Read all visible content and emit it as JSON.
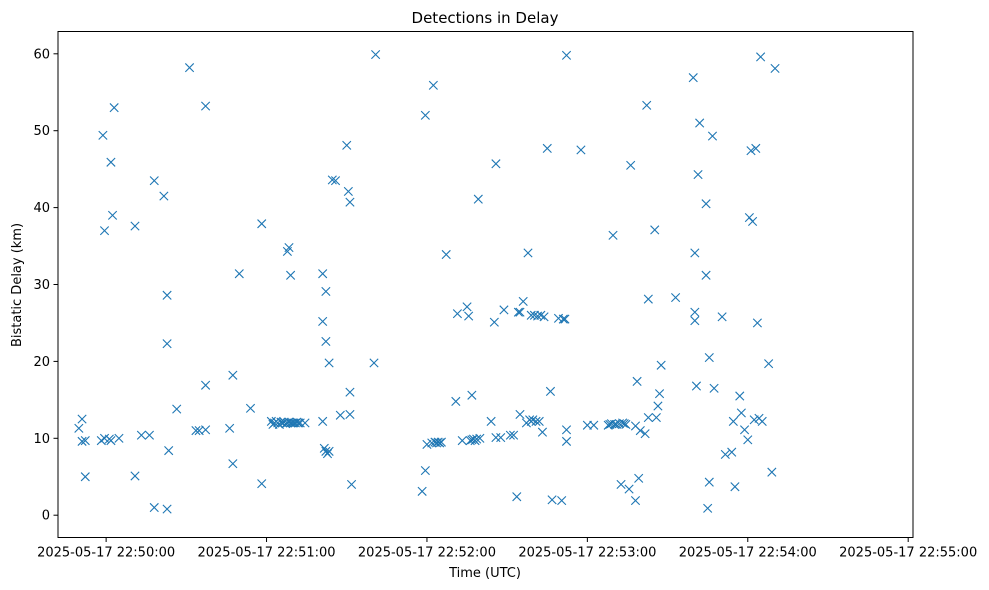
{
  "chart_data": {
    "type": "scatter",
    "title": "Detections in Delay",
    "xlabel": "Time (UTC)",
    "ylabel": "Bistatic Delay (km)",
    "x_unit": "minutes after 2025-05-17 22:50:00",
    "xlim": [
      -0.3,
      5.03
    ],
    "ylim": [
      -2.9,
      62.9
    ],
    "x_ticks": [
      0,
      1,
      2,
      3,
      4,
      5
    ],
    "x_tick_labels": [
      "2025-05-17 22:50:00",
      "2025-05-17 22:51:00",
      "2025-05-17 22:52:00",
      "2025-05-17 22:53:00",
      "2025-05-17 22:54:00",
      "2025-05-17 22:55:00"
    ],
    "y_ticks": [
      0,
      10,
      20,
      30,
      40,
      50,
      60
    ],
    "y_tick_labels": [
      "0",
      "10",
      "20",
      "30",
      "40",
      "50",
      "60"
    ],
    "marker": "x",
    "grid": false,
    "color": "#1f77b4",
    "series": [
      {
        "points": [
          [
            -0.17,
            11.3
          ],
          [
            -0.15,
            12.5
          ],
          [
            -0.15,
            9.6
          ],
          [
            -0.13,
            9.7
          ],
          [
            -0.13,
            5.0
          ],
          [
            -0.03,
            9.7
          ],
          [
            -0.02,
            49.4
          ],
          [
            -0.01,
            37.0
          ],
          [
            -0.01,
            10.0
          ],
          [
            0.02,
            9.9
          ],
          [
            0.03,
            9.7
          ],
          [
            0.03,
            45.9
          ],
          [
            0.04,
            39.0
          ],
          [
            0.05,
            53.0
          ],
          [
            0.08,
            10.0
          ],
          [
            0.18,
            37.6
          ],
          [
            0.18,
            5.1
          ],
          [
            0.22,
            10.4
          ],
          [
            0.27,
            10.4
          ],
          [
            0.3,
            43.5
          ],
          [
            0.3,
            1.0
          ],
          [
            0.36,
            41.5
          ],
          [
            0.38,
            0.8
          ],
          [
            0.38,
            28.6
          ],
          [
            0.38,
            22.3
          ],
          [
            0.39,
            8.4
          ],
          [
            0.44,
            13.8
          ],
          [
            0.52,
            58.2
          ],
          [
            0.56,
            11.0
          ],
          [
            0.58,
            11.0
          ],
          [
            0.62,
            53.2
          ],
          [
            0.62,
            16.9
          ],
          [
            0.62,
            11.1
          ],
          [
            0.77,
            11.3
          ],
          [
            0.79,
            6.7
          ],
          [
            0.79,
            18.2
          ],
          [
            0.83,
            31.4
          ],
          [
            0.9,
            13.9
          ],
          [
            0.97,
            37.9
          ],
          [
            0.97,
            4.1
          ],
          [
            1.03,
            12.2
          ],
          [
            1.04,
            11.8
          ],
          [
            1.05,
            12.0
          ],
          [
            1.06,
            12.2
          ],
          [
            1.07,
            12.0
          ],
          [
            1.08,
            11.8
          ],
          [
            1.09,
            12.1
          ],
          [
            1.1,
            12.0
          ],
          [
            1.11,
            12.1
          ],
          [
            1.12,
            11.9
          ],
          [
            1.13,
            12.0
          ],
          [
            1.14,
            12.1
          ],
          [
            1.15,
            12.0
          ],
          [
            1.16,
            12.0
          ],
          [
            1.17,
            12.0
          ],
          [
            1.18,
            12.0
          ],
          [
            1.19,
            12.1
          ],
          [
            1.2,
            12.0
          ],
          [
            1.21,
            12.0
          ],
          [
            1.24,
            12.0
          ],
          [
            1.13,
            34.3
          ],
          [
            1.14,
            34.8
          ],
          [
            1.15,
            31.2
          ],
          [
            1.35,
            31.4
          ],
          [
            1.35,
            25.2
          ],
          [
            1.35,
            12.2
          ],
          [
            1.36,
            8.7
          ],
          [
            1.37,
            8.3
          ],
          [
            1.38,
            8.0
          ],
          [
            1.39,
            8.3
          ],
          [
            1.37,
            29.1
          ],
          [
            1.37,
            22.6
          ],
          [
            1.39,
            19.8
          ],
          [
            1.41,
            43.6
          ],
          [
            1.43,
            43.5
          ],
          [
            1.46,
            13.0
          ],
          [
            1.5,
            48.1
          ],
          [
            1.51,
            42.1
          ],
          [
            1.52,
            40.7
          ],
          [
            1.52,
            13.1
          ],
          [
            1.52,
            16.0
          ],
          [
            1.53,
            4.0
          ],
          [
            1.67,
            19.8
          ],
          [
            1.68,
            59.9
          ],
          [
            1.97,
            3.1
          ],
          [
            1.99,
            5.8
          ],
          [
            1.99,
            52.0
          ],
          [
            2.0,
            9.2
          ],
          [
            2.03,
            9.4
          ],
          [
            2.04,
            55.9
          ],
          [
            2.05,
            9.5
          ],
          [
            2.06,
            9.4
          ],
          [
            2.07,
            9.5
          ],
          [
            2.08,
            9.4
          ],
          [
            2.09,
            9.5
          ],
          [
            2.12,
            33.9
          ],
          [
            2.18,
            14.8
          ],
          [
            2.19,
            26.2
          ],
          [
            2.22,
            9.7
          ],
          [
            2.25,
            27.1
          ],
          [
            2.26,
            25.9
          ],
          [
            2.27,
            9.7
          ],
          [
            2.28,
            9.8
          ],
          [
            2.28,
            15.6
          ],
          [
            2.29,
            9.9
          ],
          [
            2.3,
            9.7
          ],
          [
            2.31,
            9.9
          ],
          [
            2.32,
            41.1
          ],
          [
            2.33,
            10.0
          ],
          [
            2.4,
            12.2
          ],
          [
            2.42,
            25.1
          ],
          [
            2.43,
            10.1
          ],
          [
            2.43,
            45.7
          ],
          [
            2.46,
            10.1
          ],
          [
            2.48,
            26.7
          ],
          [
            2.52,
            10.4
          ],
          [
            2.54,
            10.4
          ],
          [
            2.56,
            2.4
          ],
          [
            2.57,
            26.4
          ],
          [
            2.58,
            26.4
          ],
          [
            2.58,
            13.1
          ],
          [
            2.6,
            27.8
          ],
          [
            2.62,
            12.0
          ],
          [
            2.63,
            34.1
          ],
          [
            2.64,
            12.4
          ],
          [
            2.65,
            26.0
          ],
          [
            2.65,
            12.2
          ],
          [
            2.66,
            12.4
          ],
          [
            2.67,
            26.0
          ],
          [
            2.68,
            12.2
          ],
          [
            2.69,
            25.9
          ],
          [
            2.7,
            12.2
          ],
          [
            2.71,
            26.0
          ],
          [
            2.72,
            10.8
          ],
          [
            2.73,
            25.8
          ],
          [
            2.75,
            47.7
          ],
          [
            2.77,
            16.1
          ],
          [
            2.78,
            2.0
          ],
          [
            2.82,
            25.6
          ],
          [
            2.84,
            1.9
          ],
          [
            2.85,
            25.5
          ],
          [
            2.86,
            25.5
          ],
          [
            2.87,
            11.1
          ],
          [
            2.87,
            9.6
          ],
          [
            2.87,
            59.8
          ],
          [
            2.96,
            47.5
          ],
          [
            3.0,
            11.7
          ],
          [
            3.04,
            11.7
          ],
          [
            3.13,
            11.7
          ],
          [
            3.14,
            11.8
          ],
          [
            3.15,
            11.9
          ],
          [
            3.16,
            36.4
          ],
          [
            3.17,
            11.8
          ],
          [
            3.18,
            11.8
          ],
          [
            3.2,
            11.9
          ],
          [
            3.21,
            4.0
          ],
          [
            3.22,
            12.0
          ],
          [
            3.23,
            11.9
          ],
          [
            3.24,
            11.8
          ],
          [
            3.26,
            3.4
          ],
          [
            3.27,
            45.5
          ],
          [
            3.3,
            1.9
          ],
          [
            3.3,
            11.6
          ],
          [
            3.31,
            17.4
          ],
          [
            3.32,
            4.8
          ],
          [
            3.33,
            11.0
          ],
          [
            3.36,
            10.6
          ],
          [
            3.37,
            53.3
          ],
          [
            3.38,
            12.7
          ],
          [
            3.38,
            28.1
          ],
          [
            3.42,
            37.1
          ],
          [
            3.43,
            12.7
          ],
          [
            3.44,
            14.2
          ],
          [
            3.45,
            15.8
          ],
          [
            3.46,
            19.5
          ],
          [
            3.55,
            28.3
          ],
          [
            3.66,
            56.9
          ],
          [
            3.67,
            34.1
          ],
          [
            3.67,
            26.4
          ],
          [
            3.67,
            25.3
          ],
          [
            3.68,
            16.8
          ],
          [
            3.69,
            44.3
          ],
          [
            3.7,
            51.0
          ],
          [
            3.74,
            40.5
          ],
          [
            3.74,
            31.2
          ],
          [
            3.75,
            0.9
          ],
          [
            3.76,
            4.3
          ],
          [
            3.76,
            20.5
          ],
          [
            3.78,
            49.3
          ],
          [
            3.79,
            16.5
          ],
          [
            3.84,
            25.8
          ],
          [
            3.86,
            7.9
          ],
          [
            3.9,
            8.2
          ],
          [
            3.91,
            12.2
          ],
          [
            3.92,
            3.7
          ],
          [
            3.95,
            15.5
          ],
          [
            3.96,
            13.3
          ],
          [
            3.98,
            11.1
          ],
          [
            4.0,
            9.8
          ],
          [
            4.01,
            38.7
          ],
          [
            4.02,
            47.4
          ],
          [
            4.03,
            38.2
          ],
          [
            4.04,
            12.4
          ],
          [
            4.05,
            47.7
          ],
          [
            4.06,
            25.0
          ],
          [
            4.07,
            12.6
          ],
          [
            4.08,
            59.6
          ],
          [
            4.09,
            12.2
          ],
          [
            4.13,
            19.7
          ],
          [
            4.15,
            5.6
          ],
          [
            4.17,
            58.1
          ]
        ]
      }
    ]
  }
}
